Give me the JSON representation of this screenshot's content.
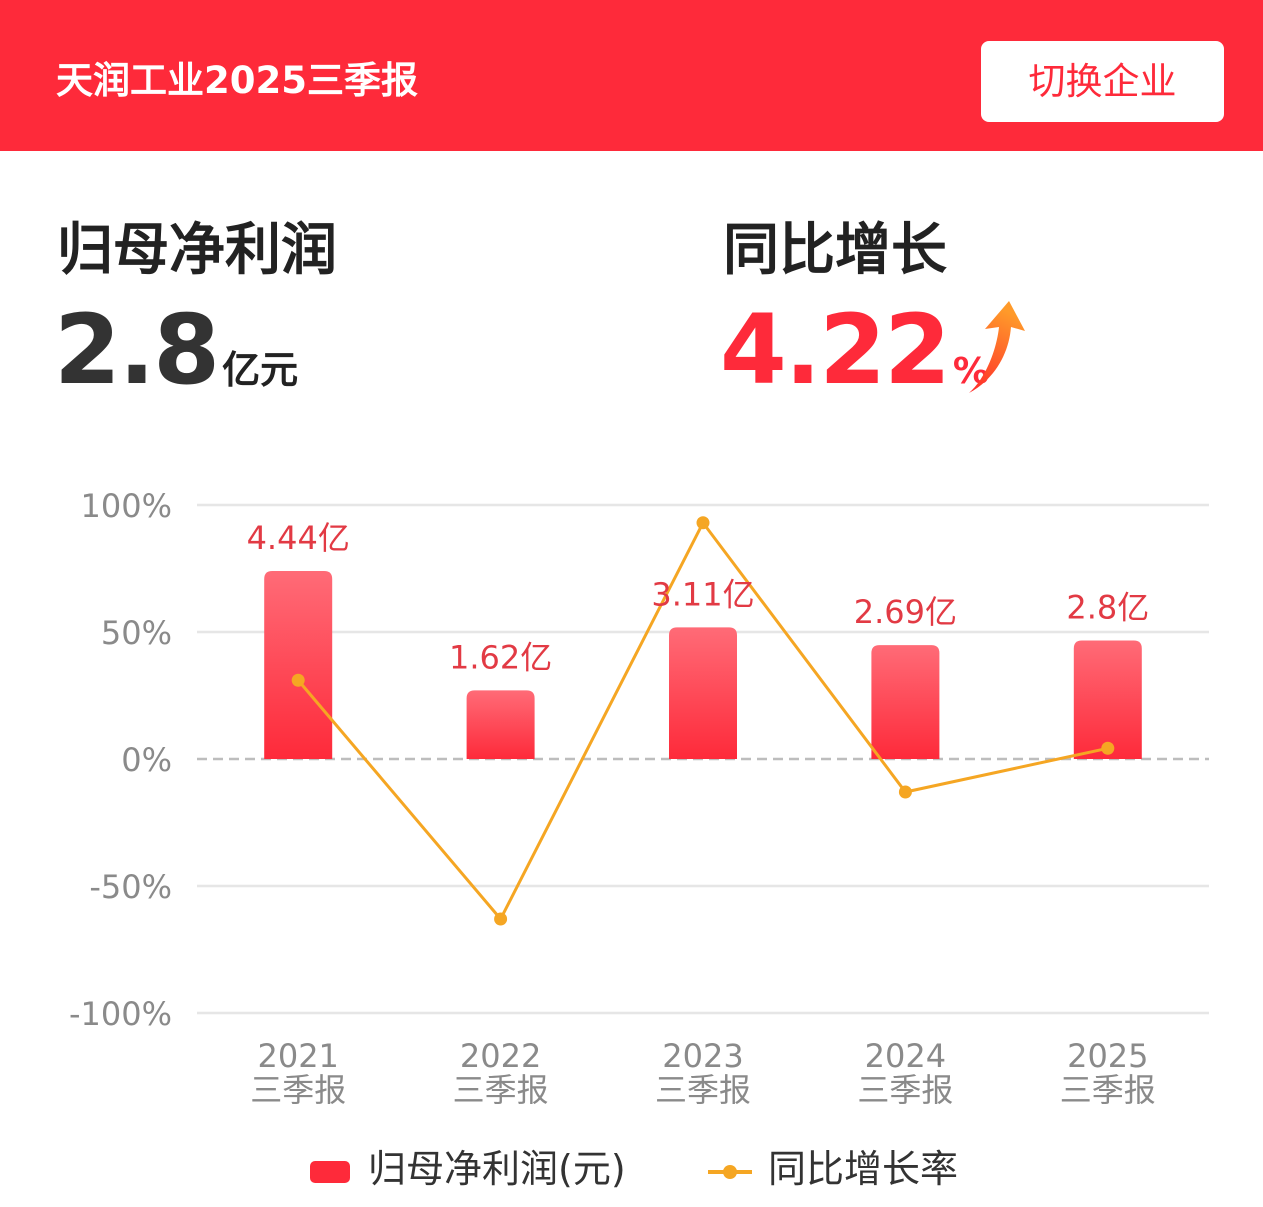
{
  "header": {
    "title": "天润工业2025三季报",
    "switch_label": "切换企业"
  },
  "kpi": {
    "profit_label": "归母净利润",
    "profit_value": "2.8",
    "profit_unit": "亿元",
    "growth_label": "同比增长",
    "growth_value": "4.22",
    "growth_unit": "%",
    "growth_direction_icon": "up-arrow-icon"
  },
  "colors": {
    "brand_red": "#fe2a3a",
    "line_orange": "#f5a623",
    "bar_top": "#ff6b77",
    "bar_bottom": "#fe2a3a"
  },
  "chart_data": {
    "type": "bar",
    "categories": [
      "2021\n三季报",
      "2022\n三季报",
      "2023\n三季报",
      "2024\n三季报",
      "2025\n三季报"
    ],
    "category_year": [
      "2021",
      "2022",
      "2023",
      "2024",
      "2025"
    ],
    "category_period": [
      "三季报",
      "三季报",
      "三季报",
      "三季报",
      "三季报"
    ],
    "series": [
      {
        "name": "归母净利润(元)",
        "type": "bar",
        "values": [
          4.44,
          1.62,
          3.11,
          2.69,
          2.8
        ],
        "labels": [
          "4.44亿",
          "1.62亿",
          "3.11亿",
          "2.69亿",
          "2.8亿"
        ]
      },
      {
        "name": "同比增长率",
        "type": "line",
        "values": [
          31,
          -63,
          93,
          -13,
          4.22
        ]
      }
    ],
    "y_ticks": [
      "100%",
      "50%",
      "0%",
      "-50%",
      "-100%"
    ],
    "ylim": [
      -100,
      100
    ],
    "grid": true,
    "legend_position": "bottom"
  }
}
